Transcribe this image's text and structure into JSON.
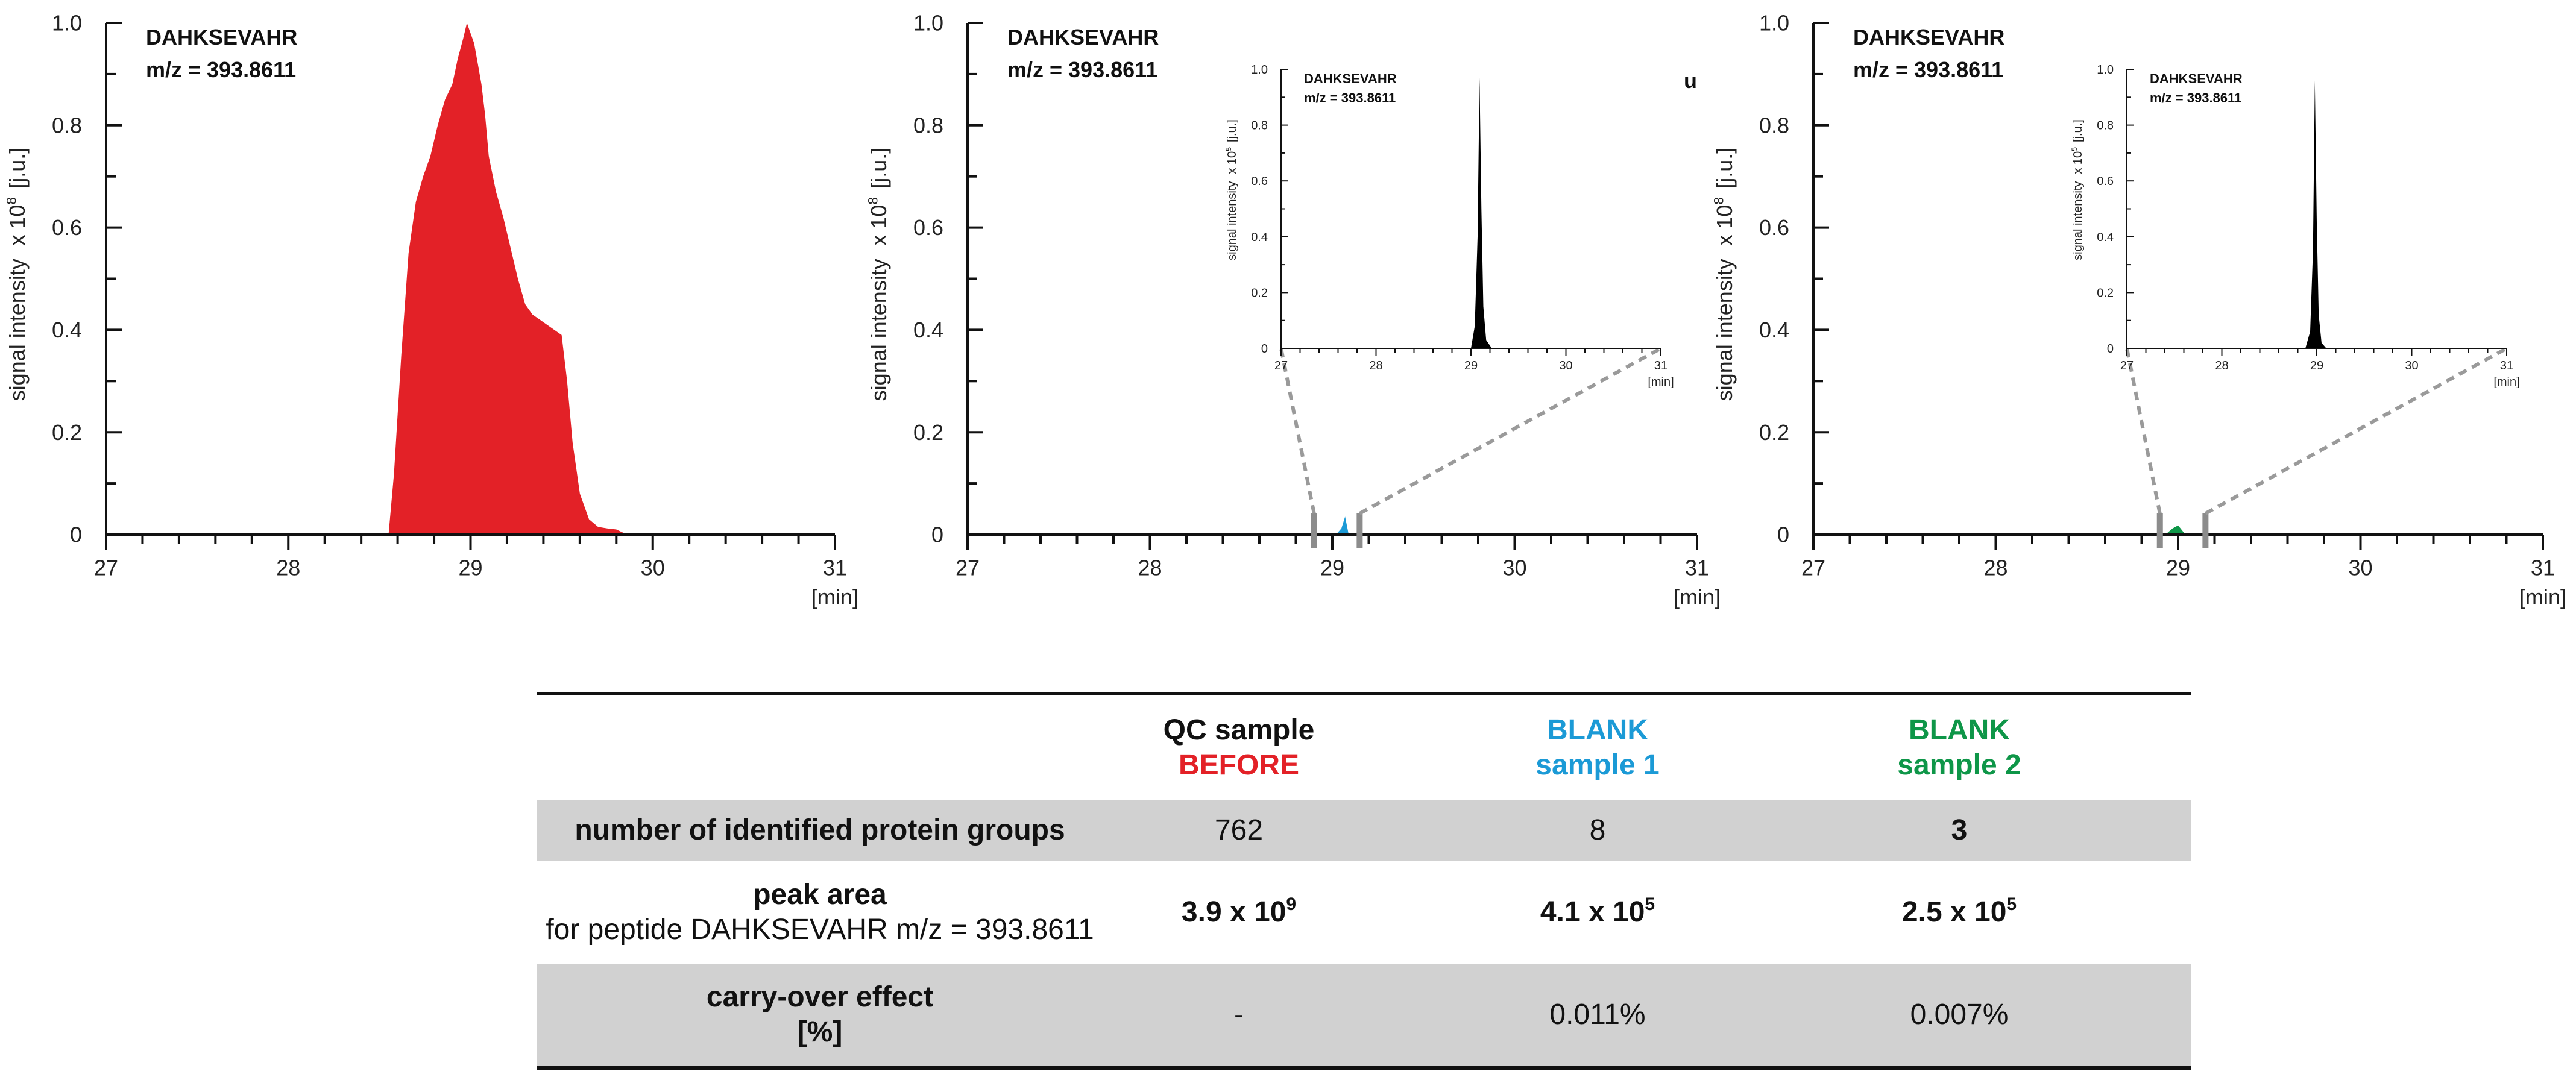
{
  "chart_data": [
    {
      "type": "area",
      "color": "#e32127",
      "annotation_line1": "DAHKSEVAHR",
      "annotation_line2": "m/z = 393.8611",
      "ylabel": "signal intensity",
      "yunit_prefix": "x 10",
      "yunit_exp": "8",
      "yunit": "[j.u.]",
      "xunit": "[min]",
      "xlim": [
        27,
        31
      ],
      "ylim": [
        0,
        1.0
      ],
      "xticks": [
        "27",
        "28",
        "29",
        "30",
        "31"
      ],
      "yticks": [
        "0",
        "0.2",
        "0.4",
        "0.6",
        "0.8",
        "1.0"
      ],
      "x": [
        28.55,
        28.58,
        28.62,
        28.66,
        28.7,
        28.74,
        28.78,
        28.82,
        28.86,
        28.9,
        28.93,
        28.96,
        28.98,
        29.0,
        29.02,
        29.04,
        29.06,
        29.08,
        29.1,
        29.14,
        29.18,
        29.22,
        29.26,
        29.3,
        29.34,
        29.38,
        29.42,
        29.46,
        29.5,
        29.53,
        29.56,
        29.6,
        29.65,
        29.7,
        29.75,
        29.8,
        29.86
      ],
      "y": [
        0.0,
        0.12,
        0.35,
        0.55,
        0.65,
        0.7,
        0.74,
        0.8,
        0.85,
        0.88,
        0.93,
        0.97,
        1.0,
        0.98,
        0.96,
        0.92,
        0.88,
        0.82,
        0.74,
        0.67,
        0.62,
        0.56,
        0.5,
        0.45,
        0.43,
        0.42,
        0.41,
        0.4,
        0.39,
        0.3,
        0.18,
        0.08,
        0.03,
        0.015,
        0.012,
        0.01,
        0.0
      ]
    },
    {
      "type": "area",
      "color": "#1b9ad6",
      "annotation_line1": "DAHKSEVAHR",
      "annotation_line2": "m/z = 393.8611",
      "ylabel": "signal intensity",
      "yunit_prefix": "x 10",
      "yunit_exp": "8",
      "yunit": "[j.u.]",
      "xunit": "[min]",
      "xlim": [
        27,
        31
      ],
      "ylim": [
        0,
        1.0
      ],
      "xticks": [
        "27",
        "28",
        "29",
        "30",
        "31"
      ],
      "yticks": [
        "0",
        "0.2",
        "0.4",
        "0.6",
        "0.8",
        "1.0"
      ],
      "x": [
        29.02,
        29.05,
        29.07,
        29.09
      ],
      "y": [
        0.0,
        0.012,
        0.035,
        0.0
      ],
      "zoom_region": [
        28.9,
        29.15
      ],
      "partial_text": "ału",
      "inset": {
        "annotation_line1": "DAHKSEVAHR",
        "annotation_line2": "m/z = 393.8611",
        "ylabel": "signal intensity",
        "yunit_prefix": "x 10",
        "yunit_exp": "5",
        "yunit": "[j.u.]",
        "xunit": "[min]",
        "xlim": [
          27,
          31
        ],
        "ylim": [
          0,
          1.0
        ],
        "xticks": [
          "27",
          "28",
          "29",
          "30",
          "31"
        ],
        "yticks": [
          "0",
          "0.2",
          "0.4",
          "0.6",
          "0.8",
          "1.0"
        ],
        "x": [
          29.0,
          29.04,
          29.07,
          29.09,
          29.11,
          29.13,
          29.16,
          29.22
        ],
        "y": [
          0.0,
          0.08,
          0.4,
          0.97,
          0.5,
          0.15,
          0.03,
          0.0
        ]
      }
    },
    {
      "type": "area",
      "color": "#0e9648",
      "annotation_line1": "DAHKSEVAHR",
      "annotation_line2": "m/z = 393.8611",
      "ylabel": "signal intensity",
      "yunit_prefix": "x 10",
      "yunit_exp": "8",
      "yunit": "[j.u.]",
      "xunit": "[min]",
      "xlim": [
        27,
        31
      ],
      "ylim": [
        0,
        1.0
      ],
      "xticks": [
        "27",
        "28",
        "29",
        "30",
        "31"
      ],
      "yticks": [
        "0",
        "0.2",
        "0.4",
        "0.6",
        "0.8",
        "1.0"
      ],
      "x": [
        28.93,
        28.97,
        29.0,
        29.04
      ],
      "y": [
        0.0,
        0.012,
        0.018,
        0.0
      ],
      "zoom_region": [
        28.9,
        29.15
      ],
      "inset": {
        "annotation_line1": "DAHKSEVAHR",
        "annotation_line2": "m/z = 393.8611",
        "ylabel": "signal intensity",
        "yunit_prefix": "x 10",
        "yunit_exp": "5",
        "yunit": "[j.u.]",
        "xunit": "[min]",
        "xlim": [
          27,
          31
        ],
        "ylim": [
          0,
          1.0
        ],
        "xticks": [
          "27",
          "28",
          "29",
          "30",
          "31"
        ],
        "yticks": [
          "0",
          "0.2",
          "0.4",
          "0.6",
          "0.8",
          "1.0"
        ],
        "x": [
          28.88,
          28.93,
          28.96,
          28.98,
          29.0,
          29.02,
          29.05,
          29.1
        ],
        "y": [
          0.0,
          0.06,
          0.35,
          0.96,
          0.45,
          0.12,
          0.02,
          0.0
        ]
      }
    }
  ],
  "table": {
    "header": {
      "qc_line1": "QC sample",
      "qc_line2": "BEFORE",
      "blank1_line1": "BLANK",
      "blank1_line2": "sample 1",
      "blank2_line1": "BLANK",
      "blank2_line2": "sample 2",
      "qc_color": "#e32127",
      "blank1_color": "#1b9ad6",
      "blank2_color": "#0e9648"
    },
    "rows": [
      {
        "label": "number of identified protein groups",
        "qc": "762",
        "blank1": "8",
        "blank2": "3"
      },
      {
        "label": "peak area",
        "sublabel": "for peptide DAHKSEVAHR  m/z = 393.8611",
        "qc_mantissa": "3.9 x 10",
        "qc_exp": "9",
        "blank1_mantissa": "4.1 x 10",
        "blank1_exp": "5",
        "blank2_mantissa": "2.5 x 10",
        "blank2_exp": "5"
      },
      {
        "label": "carry-over effect",
        "sublabel": "[%]",
        "qc": "-",
        "blank1": "0.011%",
        "blank2": "0.007%"
      }
    ]
  }
}
